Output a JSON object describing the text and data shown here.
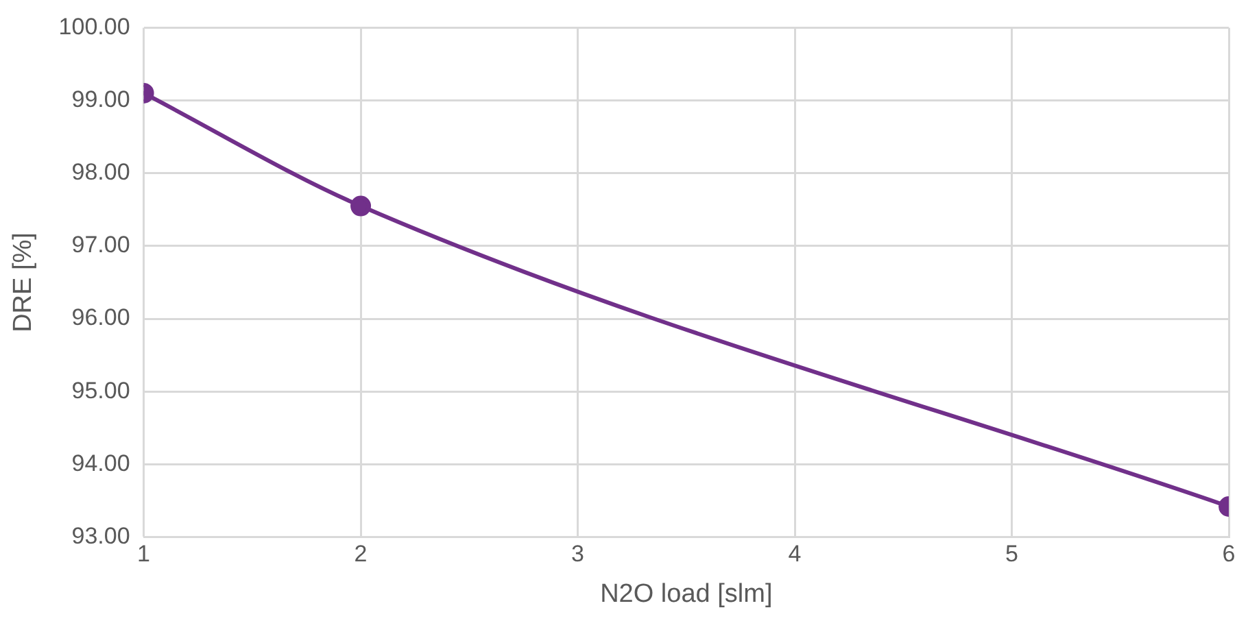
{
  "chart_data": {
    "type": "line",
    "xlabel": "N2O load [slm]",
    "ylabel": "DRE [%]",
    "x": [
      1,
      2,
      6
    ],
    "series": [
      {
        "color": "#71308a",
        "values": [
          99.1,
          97.55,
          93.42
        ]
      }
    ],
    "xlim": [
      1,
      6
    ],
    "xticks": [
      1,
      2,
      3,
      4,
      5,
      6
    ],
    "ylim": [
      93,
      100
    ],
    "yticks": [
      {
        "value": 93,
        "label": "93.00"
      },
      {
        "value": 94,
        "label": "94.00"
      },
      {
        "value": 95,
        "label": "95.00"
      },
      {
        "value": 96,
        "label": "96.00"
      },
      {
        "value": 97,
        "label": "97.00"
      },
      {
        "value": 98,
        "label": "98.00"
      },
      {
        "value": 99,
        "label": "99.00"
      },
      {
        "value": 100,
        "label": "100.00"
      }
    ],
    "grid": true,
    "legend": false,
    "marker": "circle",
    "line_style": "solid"
  }
}
